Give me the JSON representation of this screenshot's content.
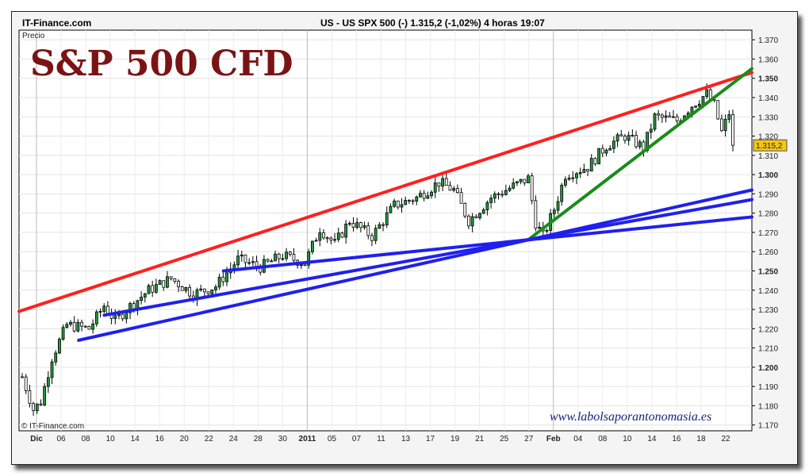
{
  "header": {
    "site": "IT-Finance.com",
    "quote": "US - US SPX 500 (-)     1.315,2 (-1,02%)     4 horas  19:07"
  },
  "chart_data": {
    "type": "candlestick",
    "title": "S&P 500 CFD",
    "title_color": "#7a1414",
    "ylabel": "Precio",
    "ylim": [
      1167,
      1375
    ],
    "y_ticks": [
      "1.370",
      "1.360",
      "1.350",
      "1.340",
      "1.330",
      "1.320",
      "1.310",
      "1.300",
      "1.290",
      "1.280",
      "1.270",
      "1.260",
      "1.250",
      "1.240",
      "1.230",
      "1.220",
      "1.210",
      "1.200",
      "1.190",
      "1.180",
      "1.170"
    ],
    "bold_y_ticks": [
      "1.350",
      "1.300",
      "1.250",
      "1.200"
    ],
    "x_ticks": [
      "Dic",
      "06",
      "08",
      "10",
      "14",
      "16",
      "20",
      "22",
      "24",
      "28",
      "30",
      "2011",
      "05",
      "07",
      "11",
      "13",
      "17",
      "19",
      "21",
      "25",
      "27",
      "Feb",
      "04",
      "08",
      "10",
      "14",
      "16",
      "18",
      "22"
    ],
    "bold_x_ticks": [
      "Dic",
      "2011",
      "Feb"
    ],
    "last_price_label": "1.315,2",
    "last_price": 1315.2,
    "ohlc_anchors": [
      {
        "i": 0,
        "c": 1195
      },
      {
        "i": 3,
        "c": 1178
      },
      {
        "i": 5,
        "c": 1182
      },
      {
        "i": 8,
        "c": 1205
      },
      {
        "i": 12,
        "c": 1222
      },
      {
        "i": 18,
        "c": 1220
      },
      {
        "i": 22,
        "c": 1232
      },
      {
        "i": 25,
        "c": 1224
      },
      {
        "i": 28,
        "c": 1230
      },
      {
        "i": 34,
        "c": 1240
      },
      {
        "i": 40,
        "c": 1246
      },
      {
        "i": 46,
        "c": 1238
      },
      {
        "i": 52,
        "c": 1242
      },
      {
        "i": 58,
        "c": 1256
      },
      {
        "i": 64,
        "c": 1252
      },
      {
        "i": 70,
        "c": 1258
      },
      {
        "i": 76,
        "c": 1254
      },
      {
        "i": 80,
        "c": 1272
      },
      {
        "i": 84,
        "c": 1264
      },
      {
        "i": 88,
        "c": 1276
      },
      {
        "i": 94,
        "c": 1268
      },
      {
        "i": 100,
        "c": 1284
      },
      {
        "i": 106,
        "c": 1288
      },
      {
        "i": 112,
        "c": 1296
      },
      {
        "i": 116,
        "c": 1292
      },
      {
        "i": 120,
        "c": 1276
      },
      {
        "i": 126,
        "c": 1288
      },
      {
        "i": 130,
        "c": 1292
      },
      {
        "i": 136,
        "c": 1298
      },
      {
        "i": 138,
        "c": 1275
      },
      {
        "i": 140,
        "c": 1268
      },
      {
        "i": 143,
        "c": 1282
      },
      {
        "i": 146,
        "c": 1300
      },
      {
        "i": 152,
        "c": 1304
      },
      {
        "i": 157,
        "c": 1315
      },
      {
        "i": 162,
        "c": 1320
      },
      {
        "i": 167,
        "c": 1314
      },
      {
        "i": 170,
        "c": 1330
      },
      {
        "i": 176,
        "c": 1328
      },
      {
        "i": 180,
        "c": 1336
      },
      {
        "i": 184,
        "c": 1342
      },
      {
        "i": 186,
        "c": 1336
      },
      {
        "i": 188,
        "c": 1322
      },
      {
        "i": 190,
        "c": 1332
      },
      {
        "i": 191,
        "c": 1315.2
      }
    ],
    "trendlines": [
      {
        "name": "resistance",
        "color": "#ff2020",
        "from": {
          "x": "2010-11-29",
          "y": 1229
        },
        "to": {
          "x": "2011-02-23",
          "y": 1353
        }
      },
      {
        "name": "support-short",
        "color": "#1a8c1a",
        "from": {
          "x": "2011-01-28",
          "y": 1267
        },
        "to": {
          "x": "2011-02-23",
          "y": 1355
        }
      },
      {
        "name": "support-1",
        "color": "#2020ee",
        "from": {
          "x": "2010-12-06",
          "y": 1214
        },
        "to": {
          "x": "2011-02-23",
          "y": 1292
        }
      },
      {
        "name": "support-2",
        "color": "#2020ee",
        "from": {
          "x": "2010-12-09",
          "y": 1227
        },
        "to": {
          "x": "2011-02-23",
          "y": 1287
        }
      },
      {
        "name": "support-3",
        "color": "#2020ee",
        "from": {
          "x": "2010-12-23",
          "y": 1250
        },
        "to": {
          "x": "2011-02-23",
          "y": 1278
        }
      }
    ],
    "watermark": "www.labolsaporantonomasia.es",
    "copyright": "© IT-Finance.com",
    "grid": true
  }
}
